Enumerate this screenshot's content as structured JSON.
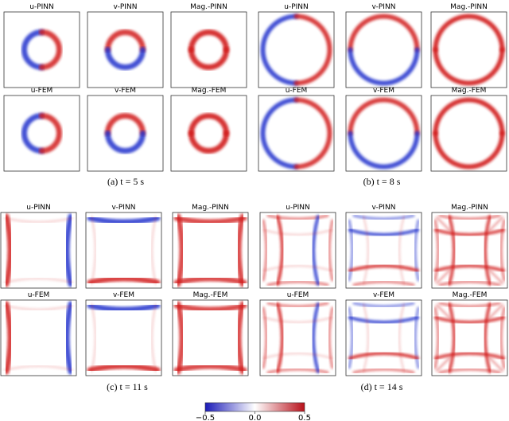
{
  "subfigures": [
    {
      "caption": "(a) t = 5 s",
      "panels": [
        {
          "title": "u-PINN"
        },
        {
          "title": "v-PINN"
        },
        {
          "title": "Mag.-PINN"
        },
        {
          "title": "u-FEM"
        },
        {
          "title": "v-FEM"
        },
        {
          "title": "Mag.-FEM"
        }
      ]
    },
    {
      "caption": "(b) t = 8 s",
      "panels": [
        {
          "title": "u-PINN"
        },
        {
          "title": "v-PINN"
        },
        {
          "title": "Mag.-PINN"
        },
        {
          "title": "u-FEM"
        },
        {
          "title": "v-FEM"
        },
        {
          "title": "Mag.-FEM"
        }
      ]
    },
    {
      "caption": "(c) t = 11 s",
      "panels": [
        {
          "title": "u-PINN"
        },
        {
          "title": "v-PINN"
        },
        {
          "title": "Mag.-PINN"
        },
        {
          "title": "u-FEM"
        },
        {
          "title": "v-FEM"
        },
        {
          "title": "Mag.-FEM"
        }
      ]
    },
    {
      "caption": "(d) t = 14 s",
      "panels": [
        {
          "title": "u-PINN"
        },
        {
          "title": "v-PINN"
        },
        {
          "title": "Mag.-PINN"
        },
        {
          "title": "u-FEM"
        },
        {
          "title": "v-FEM"
        },
        {
          "title": "Mag.-FEM"
        }
      ]
    }
  ],
  "colorbar": {
    "lim": [
      -0.5,
      0.5
    ],
    "ticks": [
      {
        "value": -0.5,
        "label": "−0.5"
      },
      {
        "value": 0,
        "label": "0.0"
      },
      0.5
    ]
  }
}
